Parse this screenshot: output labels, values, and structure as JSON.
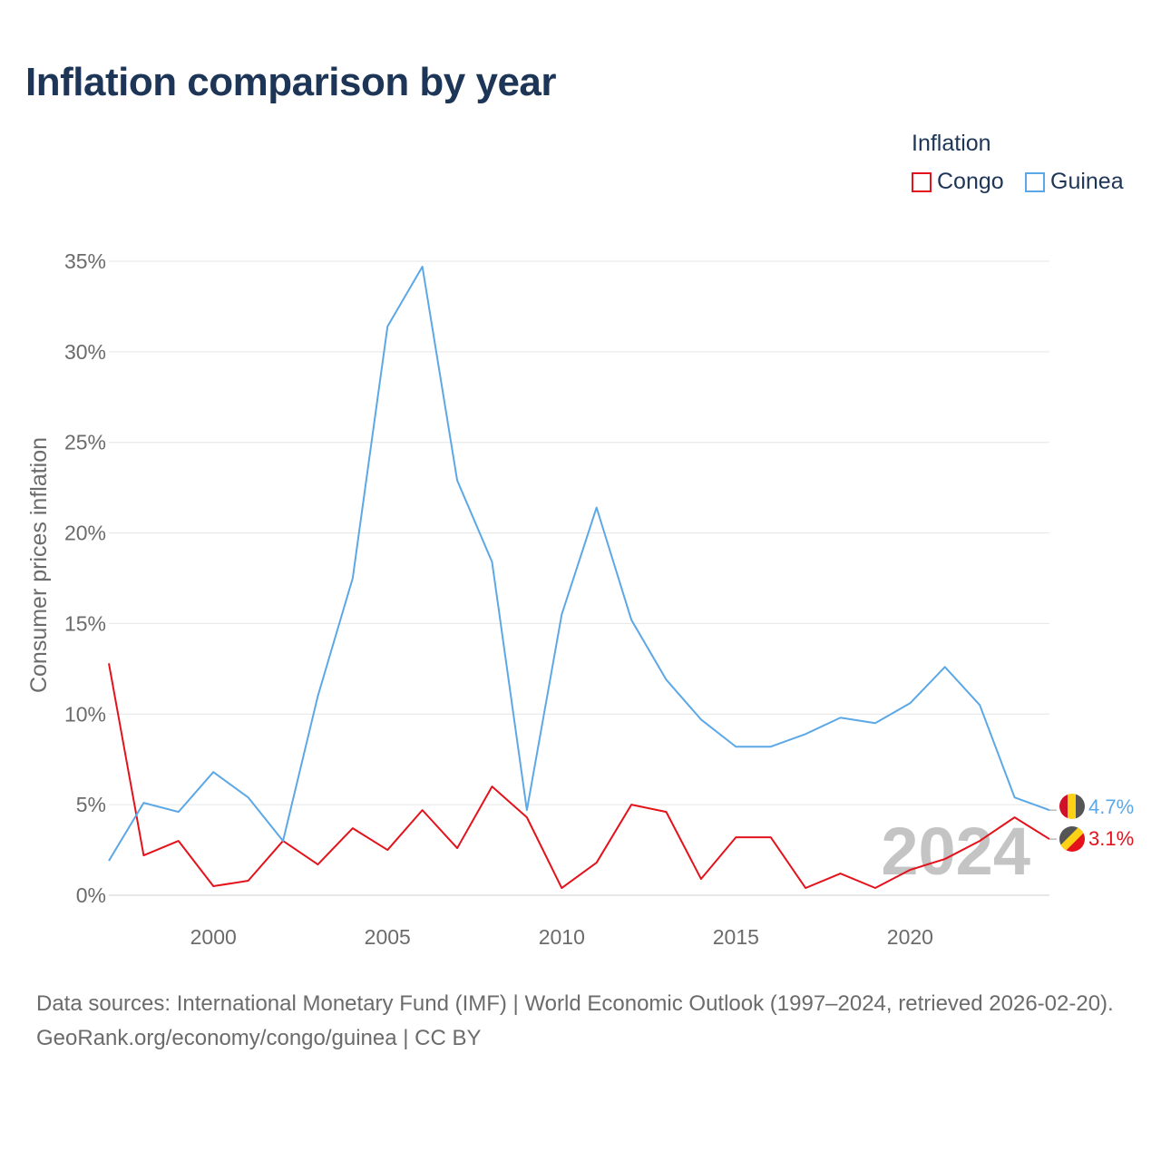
{
  "chart_data": {
    "type": "line",
    "title": "Inflation comparison by year",
    "legend_title": "Inflation",
    "xlabel": "",
    "ylabel": "Consumer prices inflation",
    "x": [
      1997,
      1998,
      1999,
      2000,
      2001,
      2002,
      2003,
      2004,
      2005,
      2006,
      2007,
      2008,
      2009,
      2010,
      2011,
      2012,
      2013,
      2014,
      2015,
      2016,
      2017,
      2018,
      2019,
      2020,
      2021,
      2022,
      2023,
      2024
    ],
    "xlim": [
      1997,
      2024
    ],
    "ylim": [
      0,
      35
    ],
    "x_ticks": [
      2000,
      2005,
      2010,
      2015,
      2020
    ],
    "y_ticks": [
      0,
      5,
      10,
      15,
      20,
      25,
      30,
      35
    ],
    "y_tick_labels": [
      "0%",
      "5%",
      "10%",
      "15%",
      "20%",
      "25%",
      "30%",
      "35%"
    ],
    "grid": true,
    "legend_position": "top-right",
    "watermark_year": "2024",
    "series": [
      {
        "name": "Congo",
        "color": "#e3121b",
        "values": [
          12.8,
          2.2,
          3.0,
          0.5,
          0.8,
          3.0,
          1.7,
          3.7,
          2.5,
          4.7,
          2.6,
          6.0,
          4.3,
          0.4,
          1.8,
          5.0,
          4.6,
          0.9,
          3.2,
          3.2,
          0.4,
          1.2,
          0.4,
          1.4,
          2.0,
          3.0,
          4.3,
          3.1
        ],
        "end_label": "3.1%"
      },
      {
        "name": "Guinea",
        "color": "#5ca8e6",
        "values": [
          1.9,
          5.1,
          4.6,
          6.8,
          5.4,
          3.0,
          11.0,
          17.5,
          31.4,
          34.7,
          22.9,
          18.4,
          4.7,
          15.5,
          21.4,
          15.2,
          11.9,
          9.7,
          8.2,
          8.2,
          8.9,
          9.8,
          9.5,
          10.6,
          12.6,
          10.5,
          5.4,
          4.7
        ],
        "end_label": "4.7%"
      }
    ]
  },
  "source": {
    "line1": "Data sources: International Monetary Fund (IMF) | World Economic Outlook (1997–2024, retrieved 2026-02-20).",
    "line2": "GeoRank.org/economy/congo/guinea | CC BY"
  }
}
